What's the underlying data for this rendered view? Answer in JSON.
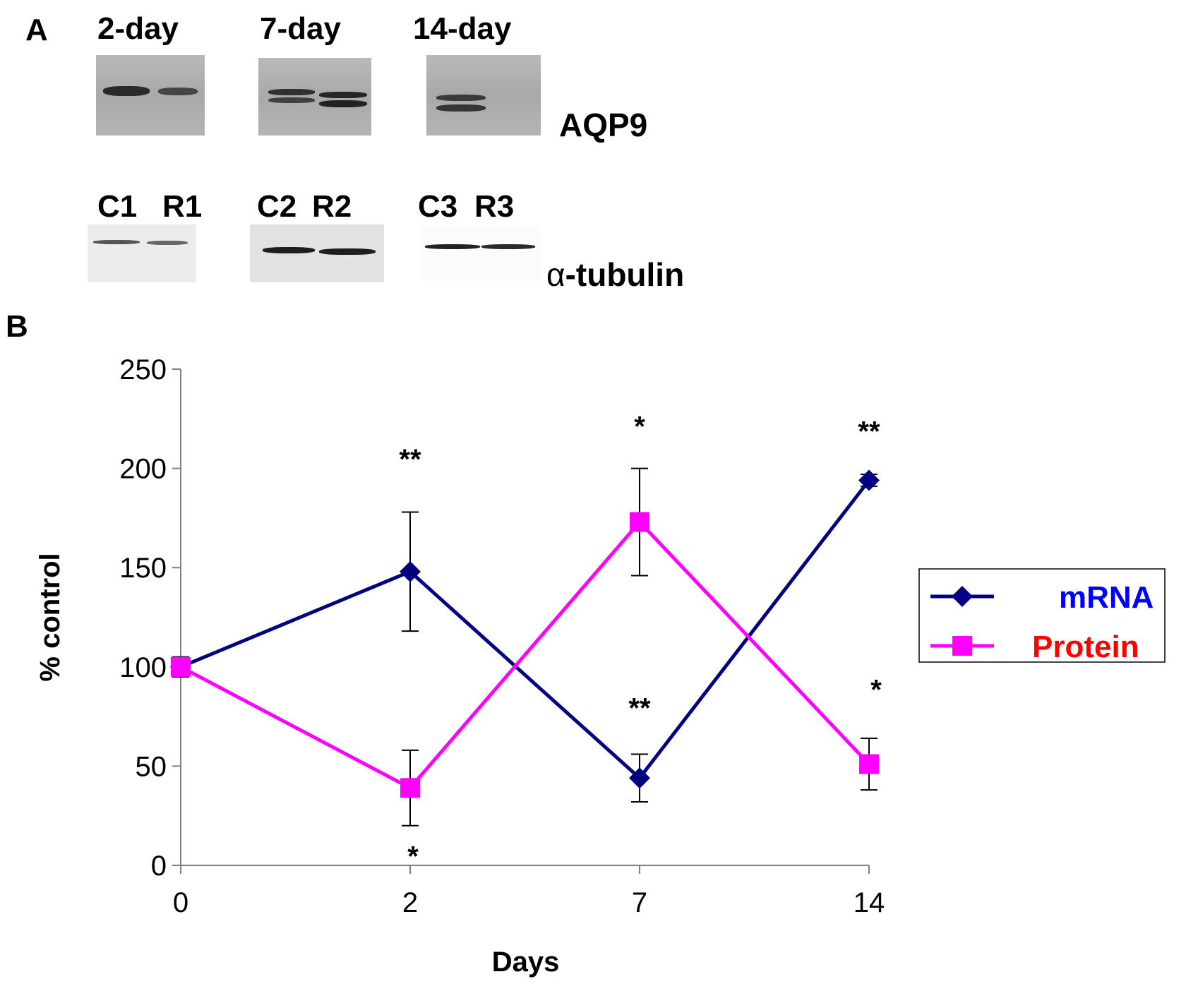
{
  "panel_a": {
    "letter": "A",
    "timepoints": [
      "2-day",
      "7-day",
      "14-day"
    ],
    "lane_labels": [
      "C1",
      "R1",
      "C2",
      "R2",
      "C3",
      "R3"
    ],
    "protein_labels": {
      "aqp9": "AQP9",
      "tubulin_symbol": "α",
      "tubulin_rest": "-tubulin"
    }
  },
  "chart_data": {
    "panel_letter": "B",
    "type": "line",
    "title": "",
    "xlabel": "Days",
    "ylabel": "% control",
    "categories": [
      "0",
      "2",
      "7",
      "14"
    ],
    "ylim": [
      0,
      250
    ],
    "yticks": [
      "0",
      "50",
      "100",
      "150",
      "200",
      "250"
    ],
    "grid": false,
    "legend_position": "right",
    "series": [
      {
        "name": "mRNA",
        "color": "#000080",
        "label_color": "#0000ff",
        "marker": "diamond",
        "values": [
          100,
          148,
          44,
          194
        ],
        "error": [
          5,
          30,
          12,
          3
        ],
        "significance": [
          "",
          "**",
          "**",
          "**"
        ]
      },
      {
        "name": "Protein",
        "color": "#ff00ff",
        "label_color": "#ff0000",
        "marker": "square",
        "values": [
          100,
          39,
          173,
          51
        ],
        "error": [
          3,
          19,
          27,
          13
        ],
        "significance": [
          "",
          "*",
          "*",
          "*"
        ]
      }
    ]
  }
}
